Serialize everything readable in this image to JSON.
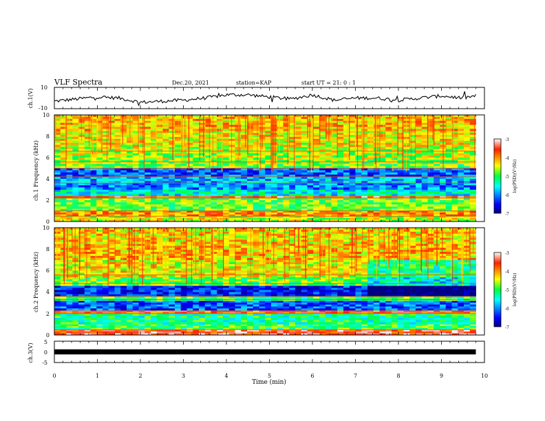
{
  "header": {
    "title": "VLF Spectra",
    "date": "Dec.20, 2021",
    "station": "station=KAP",
    "start": "start UT =  21: 0  : 1"
  },
  "chart_data": [
    {
      "type": "line",
      "panel": "ch1-waveform",
      "ylabel": "ch.1(V)",
      "ylim": [
        -10,
        10
      ],
      "y_ticks": [
        "10",
        "-10"
      ],
      "xlim": [
        0,
        10
      ],
      "x_extent_min": 9.8,
      "series": [
        {
          "x": [
            0,
            0.5,
            1.0,
            1.5,
            2.0,
            2.5,
            3.0,
            3.5,
            4.0,
            4.5,
            5.0,
            5.5,
            6.0,
            6.5,
            7.0,
            7.5,
            8.0,
            8.5,
            9.0,
            9.5,
            9.8
          ],
          "values": [
            -3,
            -1,
            1,
            0,
            -4,
            -3,
            -2,
            0,
            3,
            3,
            1,
            -1,
            3,
            -2,
            0,
            0,
            -2,
            0,
            2,
            0,
            2
          ]
        }
      ]
    },
    {
      "type": "heatmap",
      "panel": "ch1-spectrogram",
      "ylabel": "ch.1 Frequency (kHz)",
      "ylim": [
        0,
        10
      ],
      "y_ticks": [
        "10",
        "8",
        "6",
        "4",
        "2",
        "0"
      ],
      "xlim": [
        0,
        10
      ],
      "x_extent_min": 9.8,
      "freq_bands_khz": [
        [
          0,
          0.5
        ],
        [
          0.5,
          1.0
        ],
        [
          1.0,
          2.2
        ],
        [
          2.2,
          2.4
        ],
        [
          2.4,
          3.0
        ],
        [
          3.0,
          3.6
        ],
        [
          3.6,
          4.2
        ],
        [
          4.2,
          5.0
        ],
        [
          5.0,
          5.8
        ],
        [
          5.8,
          7.0
        ],
        [
          7.0,
          8.5
        ],
        [
          8.5,
          10.0
        ]
      ],
      "band_level_log": [
        -4.5,
        -4.0,
        -4.8,
        -3.6,
        -5.5,
        -6.0,
        -5.8,
        -6.2,
        -4.8,
        -4.6,
        -4.4,
        -4.2
      ],
      "harmonic_lines_khz": [
        0.5,
        1.0,
        2.2,
        3.6,
        4.2,
        5.0,
        5.6,
        6.6
      ],
      "colorbar": {
        "label": "log(PSD)(V²/Hz)",
        "range": [
          -7,
          -3
        ],
        "ticks": [
          "-3",
          "-4",
          "-5",
          "-6",
          "-7"
        ]
      }
    },
    {
      "type": "heatmap",
      "panel": "ch2-spectrogram",
      "ylabel": "ch.2 Frequency (kHz)",
      "ylim": [
        0,
        10
      ],
      "y_ticks": [
        "10",
        "8",
        "6",
        "4",
        "2",
        "0"
      ],
      "xlim": [
        0,
        10
      ],
      "x_extent_min": 9.8,
      "freq_bands_khz": [
        [
          0,
          0.5
        ],
        [
          0.5,
          1.0
        ],
        [
          1.0,
          2.0
        ],
        [
          2.0,
          2.3
        ],
        [
          2.3,
          3.2
        ],
        [
          3.2,
          3.6
        ],
        [
          3.6,
          4.6
        ],
        [
          4.6,
          5.4
        ],
        [
          5.4,
          7.0
        ],
        [
          7.0,
          8.5
        ],
        [
          8.5,
          10.0
        ]
      ],
      "band_level_log": [
        -3.5,
        -5.0,
        -5.2,
        -3.8,
        -6.2,
        -5.0,
        -6.4,
        -4.8,
        -4.4,
        -4.2,
        -4.3
      ],
      "harmonic_lines_khz": [
        0.5,
        2.0,
        3.3,
        3.6,
        4.8,
        5.6
      ],
      "colorbar": {
        "label": "log(PSD)(V²/Hz)",
        "range": [
          -7,
          -3
        ],
        "ticks": [
          "-3",
          "-4",
          "-5",
          "-6",
          "-7"
        ]
      }
    },
    {
      "type": "line",
      "panel": "ch3-waveform",
      "ylabel": "ch.3(V)",
      "ylim": [
        -5,
        5
      ],
      "y_ticks": [
        "5",
        "0",
        "-5"
      ],
      "xlim": [
        0,
        10
      ],
      "xlabel": "Time (min)",
      "x_ticks": [
        "0",
        "1",
        "2",
        "3",
        "4",
        "5",
        "6",
        "7",
        "8",
        "9",
        "10"
      ],
      "x_extent_min": 9.8,
      "series": [
        {
          "x": [
            0,
            9.8
          ],
          "values": [
            0,
            0
          ],
          "band_halfwidth_v": 0.4
        }
      ]
    }
  ]
}
